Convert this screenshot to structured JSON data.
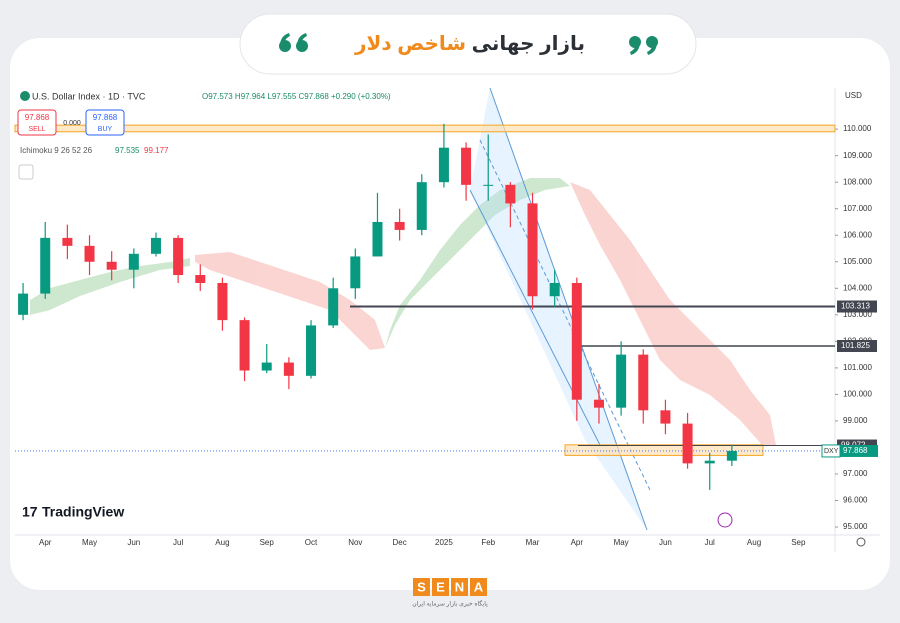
{
  "header": {
    "title_dark": "بازار جهانی",
    "title_accent": "شاخص دلار"
  },
  "toolbar": {
    "symbol": "U.S. Dollar Index · 1D · TVC",
    "quote": "O97.573 H97.964 L97.555 C97.868 +0.290 (+0.30%)",
    "sell_price": "97.868",
    "sell_label": "SELL",
    "spread": "0.000",
    "buy_price": "97.868",
    "buy_label": "BUY",
    "indicator": "Ichimoku 9 26 52 26",
    "indicator_value_1": "97.535",
    "indicator_value_2": "99.177",
    "currency": "USD"
  },
  "chart_data": {
    "type": "candlestick",
    "categories": [
      null,
      "Apr",
      null,
      "May",
      null,
      "Jun",
      null,
      "Jul",
      null,
      "Aug",
      null,
      "Sep",
      null,
      "Oct",
      null,
      "Nov",
      null,
      "Dec",
      null,
      "2025",
      null,
      "Feb",
      null,
      "Mar",
      null,
      "Apr",
      null,
      "May",
      null,
      "Jun",
      null,
      "Jul",
      null,
      "Aug",
      null,
      "Sep",
      null
    ],
    "open": [
      103.0,
      103.8,
      105.9,
      105.6,
      105.0,
      104.7,
      105.3,
      105.9,
      104.5,
      104.2,
      102.8,
      100.9,
      101.2,
      100.7,
      102.6,
      104.0,
      105.2,
      106.5,
      106.2,
      108.0,
      109.3,
      107.9,
      107.9,
      107.2,
      103.7,
      104.2,
      99.8,
      99.5,
      101.5,
      99.4,
      98.9,
      97.4,
      97.5,
      null,
      null,
      null,
      null
    ],
    "high": [
      104.2,
      106.5,
      106.4,
      106.0,
      105.4,
      105.5,
      106.1,
      106.0,
      104.9,
      104.4,
      102.9,
      101.9,
      101.4,
      102.8,
      104.4,
      105.5,
      107.6,
      107.0,
      108.3,
      110.2,
      109.5,
      109.8,
      108.0,
      107.6,
      104.7,
      104.4,
      100.4,
      102.0,
      101.7,
      99.8,
      99.3,
      97.8,
      98.1,
      null,
      null,
      null,
      null
    ],
    "low": [
      102.8,
      103.6,
      105.1,
      104.5,
      104.3,
      104.0,
      105.2,
      104.2,
      103.9,
      102.4,
      100.5,
      100.8,
      100.2,
      100.6,
      102.5,
      103.6,
      105.2,
      105.8,
      106.0,
      107.8,
      107.3,
      107.3,
      106.3,
      103.2,
      103.3,
      99.0,
      98.9,
      99.2,
      98.9,
      98.5,
      97.2,
      96.4,
      97.3,
      null,
      null,
      null,
      null
    ],
    "close": [
      103.8,
      105.9,
      105.6,
      105.0,
      104.7,
      105.3,
      105.9,
      104.5,
      104.2,
      102.8,
      100.9,
      101.2,
      100.7,
      102.6,
      104.0,
      105.2,
      106.5,
      106.2,
      108.0,
      109.3,
      107.9,
      107.9,
      107.2,
      103.7,
      104.2,
      99.8,
      99.5,
      101.5,
      99.4,
      98.9,
      97.4,
      97.5,
      97.868,
      null,
      null,
      null,
      null
    ],
    "up_color": "#089981",
    "down_color": "#f23645",
    "ylim": [
      94.7,
      111.55
    ],
    "yticks": [
      {
        "value": 95,
        "label": "95.000"
      },
      {
        "value": 96,
        "label": "96.000"
      },
      {
        "value": 97,
        "label": "97.000"
      },
      {
        "value": 98,
        "label": "98.000"
      },
      {
        "value": 99,
        "label": "99.000"
      },
      {
        "value": 100,
        "label": "100.000"
      },
      {
        "value": 101,
        "label": "101.000"
      },
      {
        "value": 102,
        "label": "102.000"
      },
      {
        "value": 103,
        "label": "103.000"
      },
      {
        "value": 104,
        "label": "104.000"
      },
      {
        "value": 105,
        "label": "105.000"
      },
      {
        "value": 106,
        "label": "106.000"
      },
      {
        "value": 107,
        "label": "107.000"
      },
      {
        "value": 108,
        "label": "108.000"
      },
      {
        "value": 109,
        "label": "109.000"
      },
      {
        "value": 110,
        "label": "110.000"
      }
    ],
    "levels": [
      103.313,
      101.825,
      98.072
    ],
    "zones": [
      [
        109.9,
        110.15
      ],
      [
        97.7,
        98.1
      ]
    ],
    "current": {
      "label": "DXY",
      "value": 97.868
    }
  },
  "branding": {
    "watermark": "TradingView",
    "logo": [
      "S",
      "E",
      "N",
      "A"
    ],
    "tagline": "پایگاه خبری بازار سرمایه ایران"
  }
}
